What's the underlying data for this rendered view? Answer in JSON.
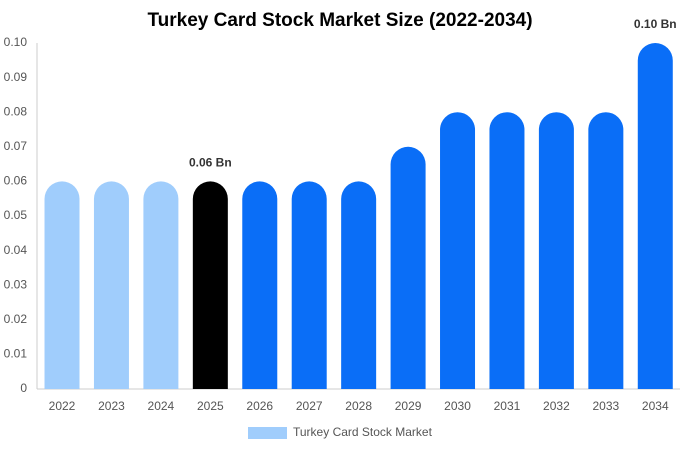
{
  "chart_data": {
    "type": "bar",
    "title": "Turkey Card Stock Market Size (2022-2034)",
    "categories": [
      "2022",
      "2023",
      "2024",
      "2025",
      "2026",
      "2027",
      "2028",
      "2029",
      "2030",
      "2031",
      "2032",
      "2033",
      "2034"
    ],
    "values": [
      0.06,
      0.06,
      0.06,
      0.06,
      0.06,
      0.06,
      0.06,
      0.07,
      0.08,
      0.08,
      0.08,
      0.08,
      0.1
    ],
    "value_labels": [
      null,
      null,
      null,
      "0.06 Bn",
      null,
      null,
      null,
      null,
      null,
      null,
      null,
      null,
      "0.10 Bn"
    ],
    "colors": [
      "#a0cdfc",
      "#a0cdfc",
      "#a0cdfc",
      "#000000",
      "#0a6ef7",
      "#0a6ef7",
      "#0a6ef7",
      "#0a6ef7",
      "#0a6ef7",
      "#0a6ef7",
      "#0a6ef7",
      "#0a6ef7",
      "#0a6ef7"
    ],
    "legend": {
      "name": "Turkey Card Stock Market",
      "color": "#a0cdfc"
    },
    "ylim": [
      0,
      0.1
    ],
    "yticks": [
      0,
      0.01,
      0.02,
      0.03,
      0.04,
      0.05,
      0.06,
      0.07,
      0.08,
      0.09,
      {
        "value": 0.1,
        "label": "0.10"
      }
    ],
    "grid": false
  }
}
